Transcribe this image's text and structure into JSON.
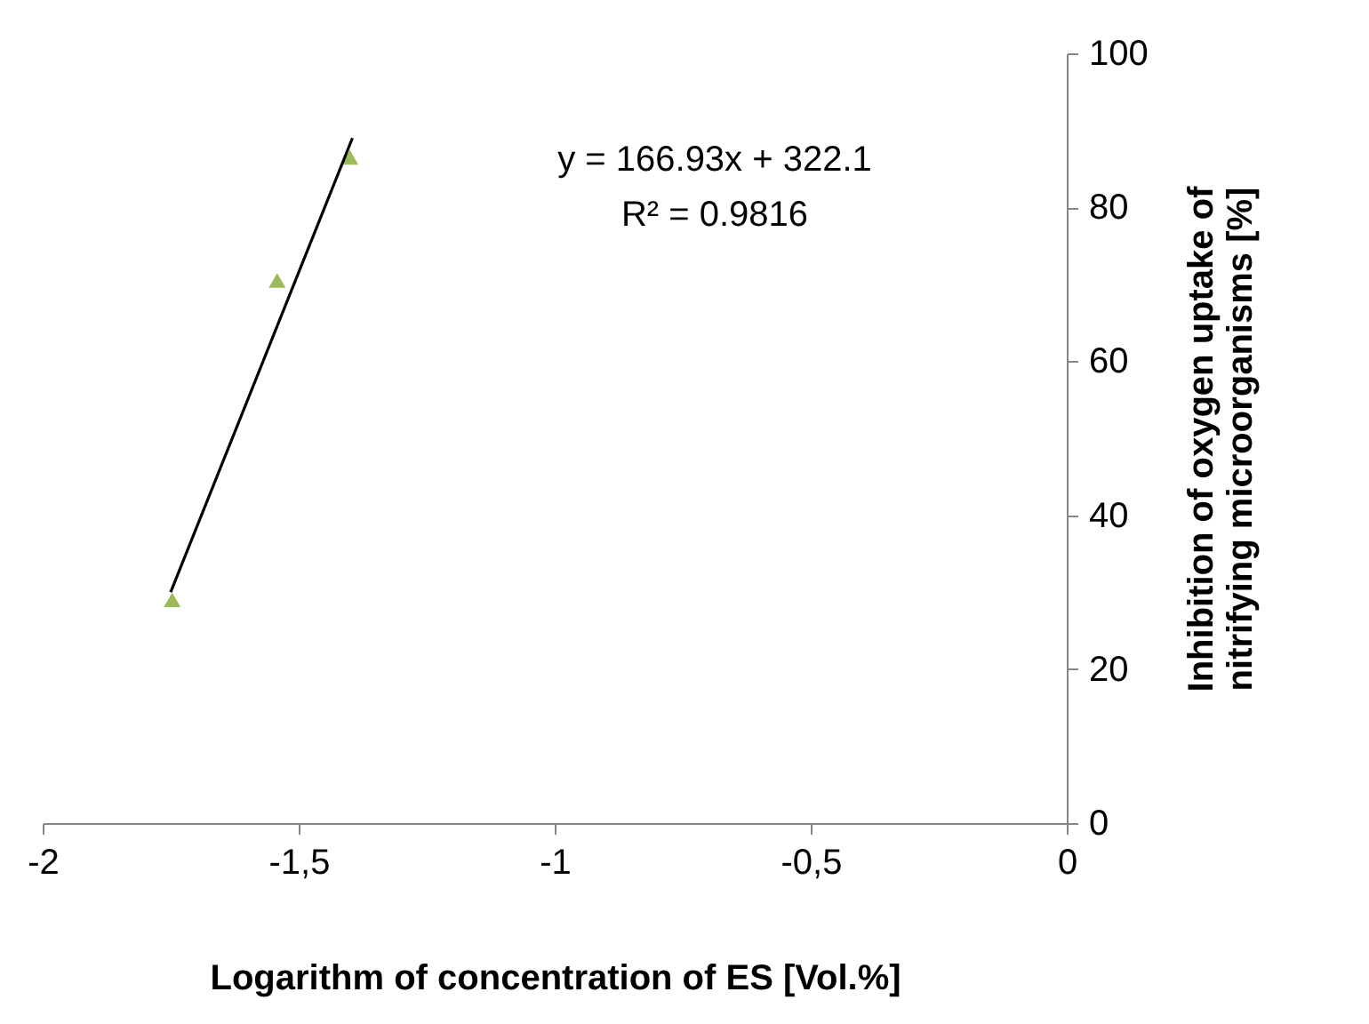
{
  "chart_data": {
    "type": "scatter",
    "xlabel": "Logarithm of concentration of ES [Vol.%]",
    "ylabel": "Inhibition of oxygen uptake of nitrifying microorganisms [%]",
    "annotations": [
      "y = 166.93x + 322.1",
      "R² = 0.9816"
    ],
    "series": [
      {
        "color": "#9bbb59",
        "x": [
          -1.747,
          -1.542,
          -1.4
        ],
        "values": [
          29,
          70.5,
          86.5
        ],
        "marker": "triangle"
      },
      {
        "type": "line",
        "color": "#000000",
        "x": [
          -1.75,
          -1.395
        ],
        "values": [
          30,
          89
        ]
      }
    ],
    "xlim": [
      -2,
      0
    ],
    "xticks": [
      {
        "value": -2,
        "label": "-2"
      },
      {
        "value": -1.5,
        "label": "-1,5"
      },
      {
        "value": -1,
        "label": "-1"
      },
      {
        "value": -0.5,
        "label": "-0,5"
      },
      {
        "value": 0,
        "label": "0"
      }
    ],
    "ylim": [
      0,
      100
    ],
    "yticks": [
      0,
      20,
      40,
      60,
      80,
      100
    ],
    "grid": false
  }
}
